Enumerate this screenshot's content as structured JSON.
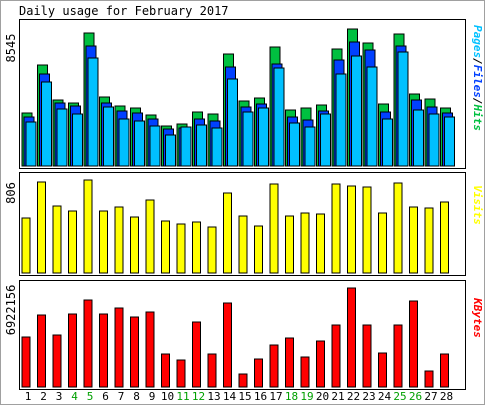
{
  "title": "Daily usage for February 2017",
  "colors": {
    "hits": "#00c040",
    "files": "#0040ff",
    "pages": "#00c0ff",
    "visits": "#ffff00",
    "kbytes": "#ff0000",
    "weekend": "#00a000",
    "text": "#000000"
  },
  "chart_data": [
    {
      "type": "bar",
      "panel": "hits-files-pages",
      "legend": "Pages/Files/Hits",
      "ymax_label": "8545",
      "ylim": [
        0,
        8545
      ],
      "categories": [
        "1",
        "2",
        "3",
        "4",
        "5",
        "6",
        "7",
        "8",
        "9",
        "10",
        "11",
        "12",
        "13",
        "14",
        "15",
        "16",
        "17",
        "18",
        "19",
        "20",
        "21",
        "22",
        "23",
        "24",
        "25",
        "26",
        "27",
        "28"
      ],
      "series": [
        {
          "name": "Hits",
          "values": [
            3180,
            6020,
            3970,
            3790,
            7920,
            4100,
            3580,
            3460,
            3050,
            2420,
            2500,
            3200,
            3090,
            6690,
            3900,
            4040,
            7100,
            3370,
            3450,
            3640,
            7000,
            8190,
            7330,
            3700,
            7910,
            4300,
            4000,
            3450
          ]
        },
        {
          "name": "Files",
          "values": [
            2950,
            5500,
            3750,
            3580,
            7160,
            3770,
            3300,
            3190,
            2820,
            2210,
            2290,
            2790,
            2680,
            5920,
            3520,
            3700,
            6100,
            2950,
            2740,
            3300,
            6350,
            7430,
            6940,
            3200,
            7180,
            3940,
            3540,
            3180
          ]
        },
        {
          "name": "Pages",
          "values": [
            2650,
            5000,
            3420,
            3080,
            6450,
            3530,
            2780,
            2700,
            2380,
            1870,
            2350,
            2450,
            2300,
            5200,
            3220,
            3470,
            5880,
            2550,
            2340,
            3080,
            5520,
            6550,
            5930,
            2810,
            6800,
            3320,
            3080,
            2900
          ]
        }
      ]
    },
    {
      "type": "bar",
      "panel": "visits",
      "legend": "Visits",
      "ymax_label": "806",
      "ylim": [
        0,
        806
      ],
      "categories": [
        "1",
        "2",
        "3",
        "4",
        "5",
        "6",
        "7",
        "8",
        "9",
        "10",
        "11",
        "12",
        "13",
        "14",
        "15",
        "16",
        "17",
        "18",
        "19",
        "20",
        "21",
        "22",
        "23",
        "24",
        "25",
        "26",
        "27",
        "28"
      ],
      "series": [
        {
          "name": "Visits",
          "values": [
            480,
            785,
            578,
            538,
            806,
            538,
            572,
            482,
            635,
            450,
            423,
            438,
            396,
            695,
            498,
            406,
            773,
            498,
            524,
            512,
            770,
            755,
            747,
            518,
            777,
            568,
            562,
            612
          ]
        }
      ]
    },
    {
      "type": "bar",
      "panel": "kbytes",
      "legend": "KBytes",
      "ymax_label": "6922156",
      "ylim": [
        0,
        6922156
      ],
      "categories": [
        "1",
        "2",
        "3",
        "4",
        "5",
        "6",
        "7",
        "8",
        "9",
        "10",
        "11",
        "12",
        "13",
        "14",
        "15",
        "16",
        "17",
        "18",
        "19",
        "20",
        "21",
        "22",
        "23",
        "24",
        "25",
        "26",
        "27",
        "28"
      ],
      "series": [
        {
          "name": "KBytes",
          "values": [
            3510000,
            5010000,
            3620000,
            5110000,
            6090000,
            5110000,
            5550000,
            4880000,
            5210000,
            2280000,
            1890000,
            4550000,
            2340000,
            5880000,
            910000,
            1950000,
            2940000,
            3460000,
            2090000,
            3240000,
            4350000,
            6922156,
            4350000,
            2370000,
            4350000,
            5990000,
            1130000,
            2310000
          ]
        }
      ]
    }
  ],
  "x_axis": {
    "labels": [
      "1",
      "2",
      "3",
      "4",
      "5",
      "6",
      "7",
      "8",
      "9",
      "10",
      "11",
      "12",
      "13",
      "14",
      "15",
      "16",
      "17",
      "18",
      "19",
      "20",
      "21",
      "22",
      "23",
      "24",
      "25",
      "26",
      "27",
      "28"
    ],
    "weekend": [
      4,
      5,
      11,
      12,
      18,
      19,
      25,
      26
    ]
  }
}
